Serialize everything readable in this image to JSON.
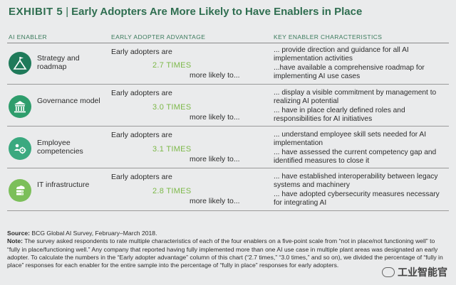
{
  "title": {
    "exhibit": "EXHIBIT 5",
    "separator": "|",
    "main": "Early Adopters Are More Likely to Have Enablers in Place"
  },
  "headers": {
    "enabler": "AI ENABLER",
    "advantage": "EARLY ADOPTER ADVANTAGE",
    "characteristics": "KEY ENABLER CHARACTERISTICS"
  },
  "colors": {
    "title_green": "#2f6e50",
    "times_green": "#7cb848",
    "icon_dark": "#1f7a5a",
    "icon_mid": "#2e9d6c",
    "icon_teal": "#3aa97f",
    "icon_light": "#7cbf5a"
  },
  "rows": [
    {
      "icon": "flag-on-peak-icon",
      "name": "Strategy and roadmap",
      "adv_top": "Early adopters are",
      "times": "2.7 TIMES",
      "adv_bottom": "more likely to...",
      "char1": "... provide direction and guidance for all AI implementation activities",
      "char2": "...have available a comprehensive roadmap for implementing AI use cases"
    },
    {
      "icon": "government-building-icon",
      "name": "Governance model",
      "adv_top": "Early adopters are",
      "times": "3.0 TIMES",
      "adv_bottom": "more likely to...",
      "char1": "... display a visible commitment by management to realizing AI potential",
      "char2": "... have in place clearly defined roles and responsibilities for AI initiatives"
    },
    {
      "icon": "people-gear-icon",
      "name": "Employee competencies",
      "adv_top": "Early adopters are",
      "times": "3.1 TIMES",
      "adv_bottom": "more likely to...",
      "char1": "... understand employee skill sets needed for AI implementation",
      "char2": "... have assessed the current competency gap and identified measures to close it"
    },
    {
      "icon": "cloud-server-icon",
      "name": "IT infrastructure",
      "adv_top": "Early adopters are",
      "times": "2.8 TIMES",
      "adv_bottom": "more likely to...",
      "char1": "... have established interoperability between legacy systems and machinery",
      "char2": "... have adopted cybersecurity measures necessary for integrating AI"
    }
  ],
  "footnotes": {
    "source_label": "Source:",
    "source_text": " BCG Global AI Survey, February–March 2018.",
    "note_label": "Note:",
    "note_text": " The survey asked respondents to rate multiple characteristics of each of the four enablers on a five-point scale from “not in place/not functioning well” to “fully in place/functioning well.” Any company that reported having fully implemented more than one AI use case in multiple plant areas was designated an early adopter. To calculate the numbers in the “Early adopter advantage” column of this chart (“2.7 times,” “3.0 times,” and so on), we divided the percentage of “fully in place” responses for each enabler for the entire sample into the percentage of “fully in place” responses for early adopters."
  },
  "watermark": {
    "text": "工业智能官"
  }
}
